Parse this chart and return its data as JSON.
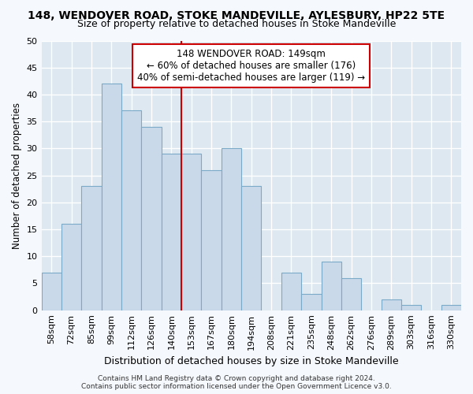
{
  "title1": "148, WENDOVER ROAD, STOKE MANDEVILLE, AYLESBURY, HP22 5TE",
  "title2": "Size of property relative to detached houses in Stoke Mandeville",
  "xlabel": "Distribution of detached houses by size in Stoke Mandeville",
  "ylabel": "Number of detached properties",
  "categories": [
    "58sqm",
    "72sqm",
    "85sqm",
    "99sqm",
    "112sqm",
    "126sqm",
    "140sqm",
    "153sqm",
    "167sqm",
    "180sqm",
    "194sqm",
    "208sqm",
    "221sqm",
    "235sqm",
    "248sqm",
    "262sqm",
    "276sqm",
    "289sqm",
    "303sqm",
    "316sqm",
    "330sqm"
  ],
  "values": [
    7,
    16,
    23,
    42,
    37,
    34,
    29,
    29,
    26,
    30,
    23,
    0,
    7,
    3,
    9,
    6,
    0,
    2,
    1,
    0,
    1
  ],
  "bar_color": "#c9d9ea",
  "bar_edge_color": "#7aaac8",
  "vline_color": "#cc0000",
  "annotation_text": "148 WENDOVER ROAD: 149sqm\n← 60% of detached houses are smaller (176)\n40% of semi-detached houses are larger (119) →",
  "annotation_box_color": "#ffffff",
  "annotation_box_edge": "#cc0000",
  "ylim": [
    0,
    50
  ],
  "yticks": [
    0,
    5,
    10,
    15,
    20,
    25,
    30,
    35,
    40,
    45,
    50
  ],
  "bg_color": "#dde8f0",
  "grid_color": "#ffffff",
  "fig_bg": "#f5f8fc",
  "footer": "Contains HM Land Registry data © Crown copyright and database right 2024.\nContains public sector information licensed under the Open Government Licence v3.0.",
  "title1_fontsize": 10,
  "title2_fontsize": 9,
  "xlabel_fontsize": 9,
  "ylabel_fontsize": 8.5,
  "tick_fontsize": 8,
  "annot_fontsize": 8.5,
  "footer_fontsize": 6.5
}
